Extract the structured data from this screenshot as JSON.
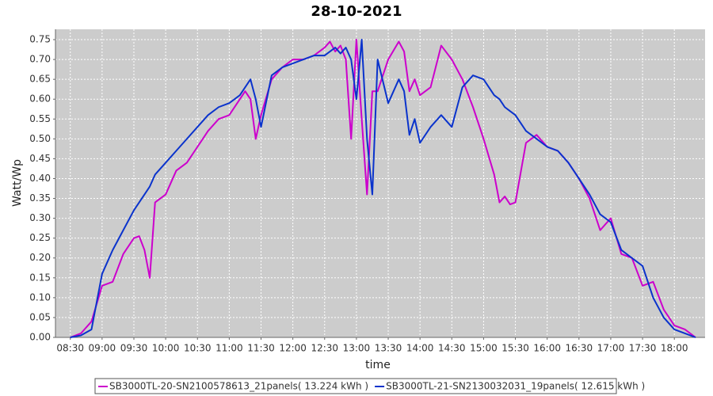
{
  "chart_data": {
    "type": "line",
    "title": "28-10-2021",
    "x_label": "time",
    "y_label": "Watt/Wp",
    "x": [
      "08:30",
      "08:40",
      "08:50",
      "09:00",
      "09:10",
      "09:20",
      "09:30",
      "09:35",
      "09:40",
      "09:45",
      "09:50",
      "10:00",
      "10:10",
      "10:20",
      "10:30",
      "10:40",
      "10:50",
      "11:00",
      "11:10",
      "11:15",
      "11:20",
      "11:25",
      "11:30",
      "11:40",
      "11:50",
      "12:00",
      "12:10",
      "12:20",
      "12:30",
      "12:35",
      "12:40",
      "12:45",
      "12:50",
      "12:55",
      "13:00",
      "13:05",
      "13:10",
      "13:15",
      "13:20",
      "13:30",
      "13:40",
      "13:45",
      "13:50",
      "13:55",
      "14:00",
      "14:10",
      "14:20",
      "14:30",
      "14:40",
      "14:50",
      "15:00",
      "15:10",
      "15:15",
      "15:20",
      "15:25",
      "15:30",
      "15:40",
      "15:50",
      "16:00",
      "16:10",
      "16:20",
      "16:30",
      "16:40",
      "16:50",
      "17:00",
      "17:10",
      "17:20",
      "17:30",
      "17:40",
      "17:50",
      "18:00",
      "18:10",
      "18:20"
    ],
    "series": [
      {
        "name": "SB3000TL-20-SN2100578613_21panels( 13.224 kWh )",
        "color": "#cc00cc",
        "values": [
          0.0,
          0.01,
          0.04,
          0.13,
          0.14,
          0.21,
          0.25,
          0.255,
          0.22,
          0.15,
          0.34,
          0.36,
          0.42,
          0.44,
          0.48,
          0.52,
          0.55,
          0.56,
          0.6,
          0.62,
          0.6,
          0.5,
          0.56,
          0.65,
          0.68,
          0.7,
          0.7,
          0.71,
          0.73,
          0.745,
          0.72,
          0.735,
          0.7,
          0.5,
          0.75,
          0.55,
          0.36,
          0.62,
          0.62,
          0.7,
          0.745,
          0.72,
          0.62,
          0.65,
          0.61,
          0.63,
          0.735,
          0.7,
          0.65,
          0.58,
          0.5,
          0.41,
          0.34,
          0.355,
          0.335,
          0.34,
          0.49,
          0.51,
          0.48,
          0.47,
          0.44,
          0.4,
          0.35,
          0.27,
          0.3,
          0.21,
          0.2,
          0.13,
          0.14,
          0.07,
          0.03,
          0.02,
          0.0
        ]
      },
      {
        "name": "SB3000TL-21-SN2130032031_19panels( 12.615 kWh )",
        "color": "#0a33cc",
        "values": [
          0.0,
          0.005,
          0.02,
          0.16,
          0.22,
          0.27,
          0.32,
          0.34,
          0.36,
          0.38,
          0.41,
          0.44,
          0.47,
          0.5,
          0.53,
          0.56,
          0.58,
          0.59,
          0.61,
          0.63,
          0.65,
          0.6,
          0.53,
          0.66,
          0.68,
          0.69,
          0.7,
          0.71,
          0.71,
          0.72,
          0.73,
          0.715,
          0.73,
          0.7,
          0.6,
          0.75,
          0.5,
          0.36,
          0.7,
          0.59,
          0.65,
          0.62,
          0.51,
          0.55,
          0.49,
          0.53,
          0.56,
          0.53,
          0.63,
          0.66,
          0.65,
          0.61,
          0.6,
          0.58,
          0.57,
          0.56,
          0.52,
          0.5,
          0.48,
          0.47,
          0.44,
          0.4,
          0.36,
          0.31,
          0.29,
          0.22,
          0.2,
          0.18,
          0.1,
          0.05,
          0.02,
          0.01,
          0.0
        ]
      }
    ],
    "xlim": [
      "08:16",
      "18:29"
    ],
    "xticks": [
      "08:30",
      "09:00",
      "09:30",
      "10:00",
      "10:30",
      "11:00",
      "11:30",
      "12:00",
      "12:30",
      "13:00",
      "13:30",
      "14:00",
      "14:30",
      "15:00",
      "15:30",
      "16:00",
      "16:30",
      "17:00",
      "17:30",
      "18:00"
    ],
    "ylim": [
      0,
      0.776
    ],
    "yticks": [
      {
        "value": 0,
        "label": "0.00"
      },
      0.05,
      {
        "value": 0.1,
        "label": "0.10"
      },
      0.15,
      {
        "value": 0.2,
        "label": "0.20"
      },
      0.25,
      {
        "value": 0.3,
        "label": "0.30"
      },
      0.35,
      {
        "value": 0.4,
        "label": "0.40"
      },
      0.45,
      {
        "value": 0.5,
        "label": "0.50"
      },
      0.55,
      {
        "value": 0.6,
        "label": "0.60"
      },
      0.65,
      {
        "value": 0.7,
        "label": "0.70"
      },
      0.75
    ],
    "grid": true,
    "legend": "bottom"
  }
}
